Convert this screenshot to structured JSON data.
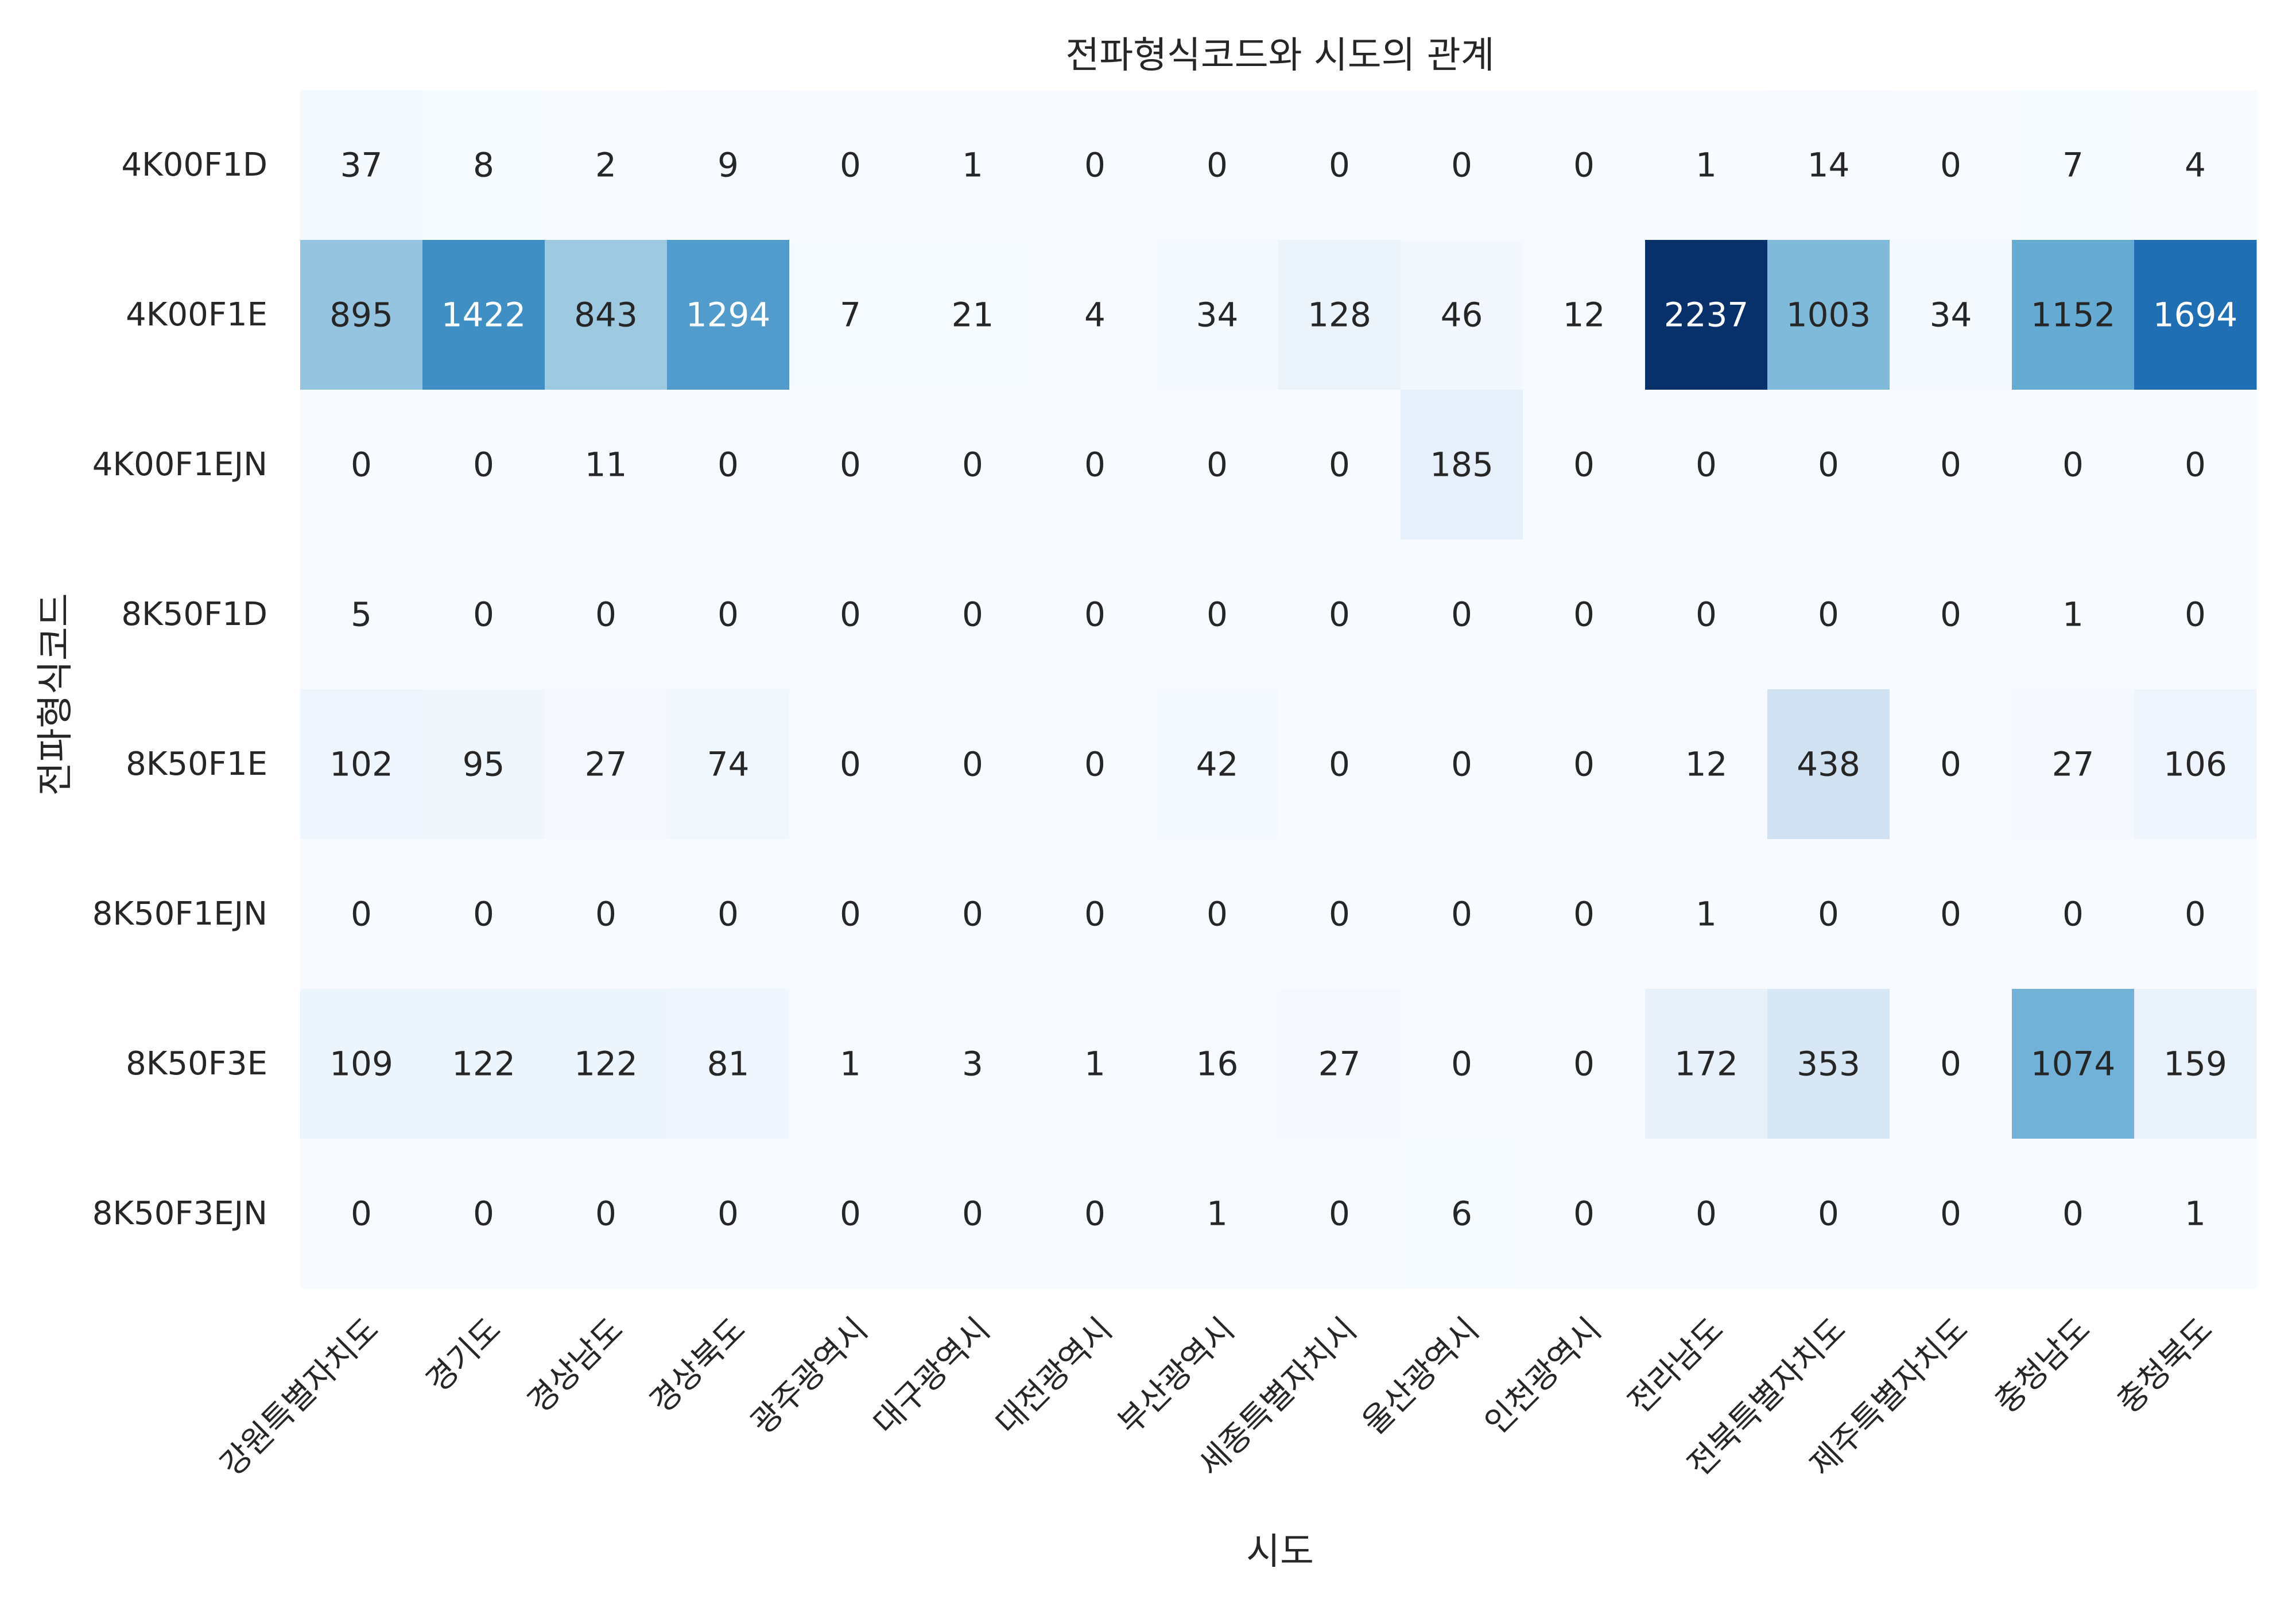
{
  "chart_data": {
    "type": "heatmap",
    "title": "전파형식코드와 시도의 관계",
    "xlabel": "시도",
    "ylabel": "전파형식코드",
    "x_categories": [
      "강원특별자치도",
      "경기도",
      "경상남도",
      "경상북도",
      "광주광역시",
      "대구광역시",
      "대전광역시",
      "부산광역시",
      "세종특별자치시",
      "울산광역시",
      "인천광역시",
      "전라남도",
      "전북특별자치도",
      "제주특별자치도",
      "충청남도",
      "충청북도"
    ],
    "y_categories": [
      "4K00F1D",
      "4K00F1E",
      "4K00F1EJN",
      "8K50F1D",
      "8K50F1E",
      "8K50F1EJN",
      "8K50F3E",
      "8K50F3EJN"
    ],
    "values": [
      [
        37,
        8,
        2,
        9,
        0,
        1,
        0,
        0,
        0,
        0,
        0,
        1,
        14,
        0,
        7,
        4
      ],
      [
        895,
        1422,
        843,
        1294,
        7,
        21,
        4,
        34,
        128,
        46,
        12,
        2237,
        1003,
        34,
        1152,
        1694
      ],
      [
        0,
        0,
        11,
        0,
        0,
        0,
        0,
        0,
        0,
        185,
        0,
        0,
        0,
        0,
        0,
        0
      ],
      [
        5,
        0,
        0,
        0,
        0,
        0,
        0,
        0,
        0,
        0,
        0,
        0,
        0,
        0,
        1,
        0
      ],
      [
        102,
        95,
        27,
        74,
        0,
        0,
        0,
        42,
        0,
        0,
        0,
        12,
        438,
        0,
        27,
        106
      ],
      [
        0,
        0,
        0,
        0,
        0,
        0,
        0,
        0,
        0,
        0,
        0,
        1,
        0,
        0,
        0,
        0
      ],
      [
        109,
        122,
        122,
        81,
        1,
        3,
        1,
        16,
        27,
        0,
        0,
        172,
        353,
        0,
        1074,
        159
      ],
      [
        0,
        0,
        0,
        0,
        0,
        0,
        0,
        1,
        0,
        6,
        0,
        0,
        0,
        0,
        0,
        1
      ]
    ],
    "vmin": 0,
    "vmax": 2237,
    "colormap": "Blues",
    "colormap_stops": [
      "#f7fbff",
      "#deebf7",
      "#c6dbef",
      "#9ecae1",
      "#6baed6",
      "#4292c6",
      "#2171b5",
      "#08519c",
      "#08306b"
    ],
    "annotations": true,
    "colorbar": false,
    "grid": false,
    "x_tick_rotation_deg": 45
  }
}
